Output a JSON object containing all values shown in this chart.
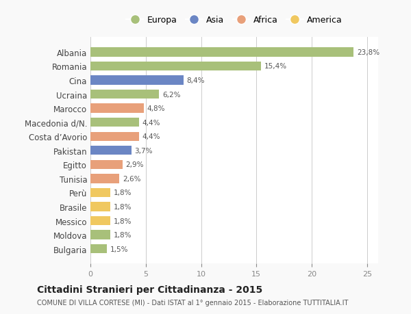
{
  "categories": [
    "Albania",
    "Romania",
    "Cina",
    "Ucraina",
    "Marocco",
    "Macedonia d/N.",
    "Costa d’Avorio",
    "Pakistan",
    "Egitto",
    "Tunisia",
    "Perù",
    "Brasile",
    "Messico",
    "Moldova",
    "Bulgaria"
  ],
  "values": [
    23.8,
    15.4,
    8.4,
    6.2,
    4.8,
    4.4,
    4.4,
    3.7,
    2.9,
    2.6,
    1.8,
    1.8,
    1.8,
    1.8,
    1.5
  ],
  "labels": [
    "23,8%",
    "15,4%",
    "8,4%",
    "6,2%",
    "4,8%",
    "4,4%",
    "4,4%",
    "3,7%",
    "2,9%",
    "2,6%",
    "1,8%",
    "1,8%",
    "1,8%",
    "1,8%",
    "1,5%"
  ],
  "colors": [
    "#a8c07a",
    "#a8c07a",
    "#6b86c4",
    "#a8c07a",
    "#e8a07a",
    "#a8c07a",
    "#e8a07a",
    "#6b86c4",
    "#e8a07a",
    "#e8a07a",
    "#f0c860",
    "#f0c860",
    "#f0c860",
    "#a8c07a",
    "#a8c07a"
  ],
  "legend_labels": [
    "Europa",
    "Asia",
    "Africa",
    "America"
  ],
  "legend_colors": [
    "#a8c07a",
    "#6b86c4",
    "#e8a07a",
    "#f0c860"
  ],
  "title": "Cittadini Stranieri per Cittadinanza - 2015",
  "subtitle": "COMUNE DI VILLA CORTESE (MI) - Dati ISTAT al 1° gennaio 2015 - Elaborazione TUTTITALIA.IT",
  "xlim": [
    0,
    26
  ],
  "xticks": [
    0,
    5,
    10,
    15,
    20,
    25
  ],
  "background_color": "#f9f9f9",
  "bar_background": "#ffffff",
  "grid_color": "#cccccc"
}
